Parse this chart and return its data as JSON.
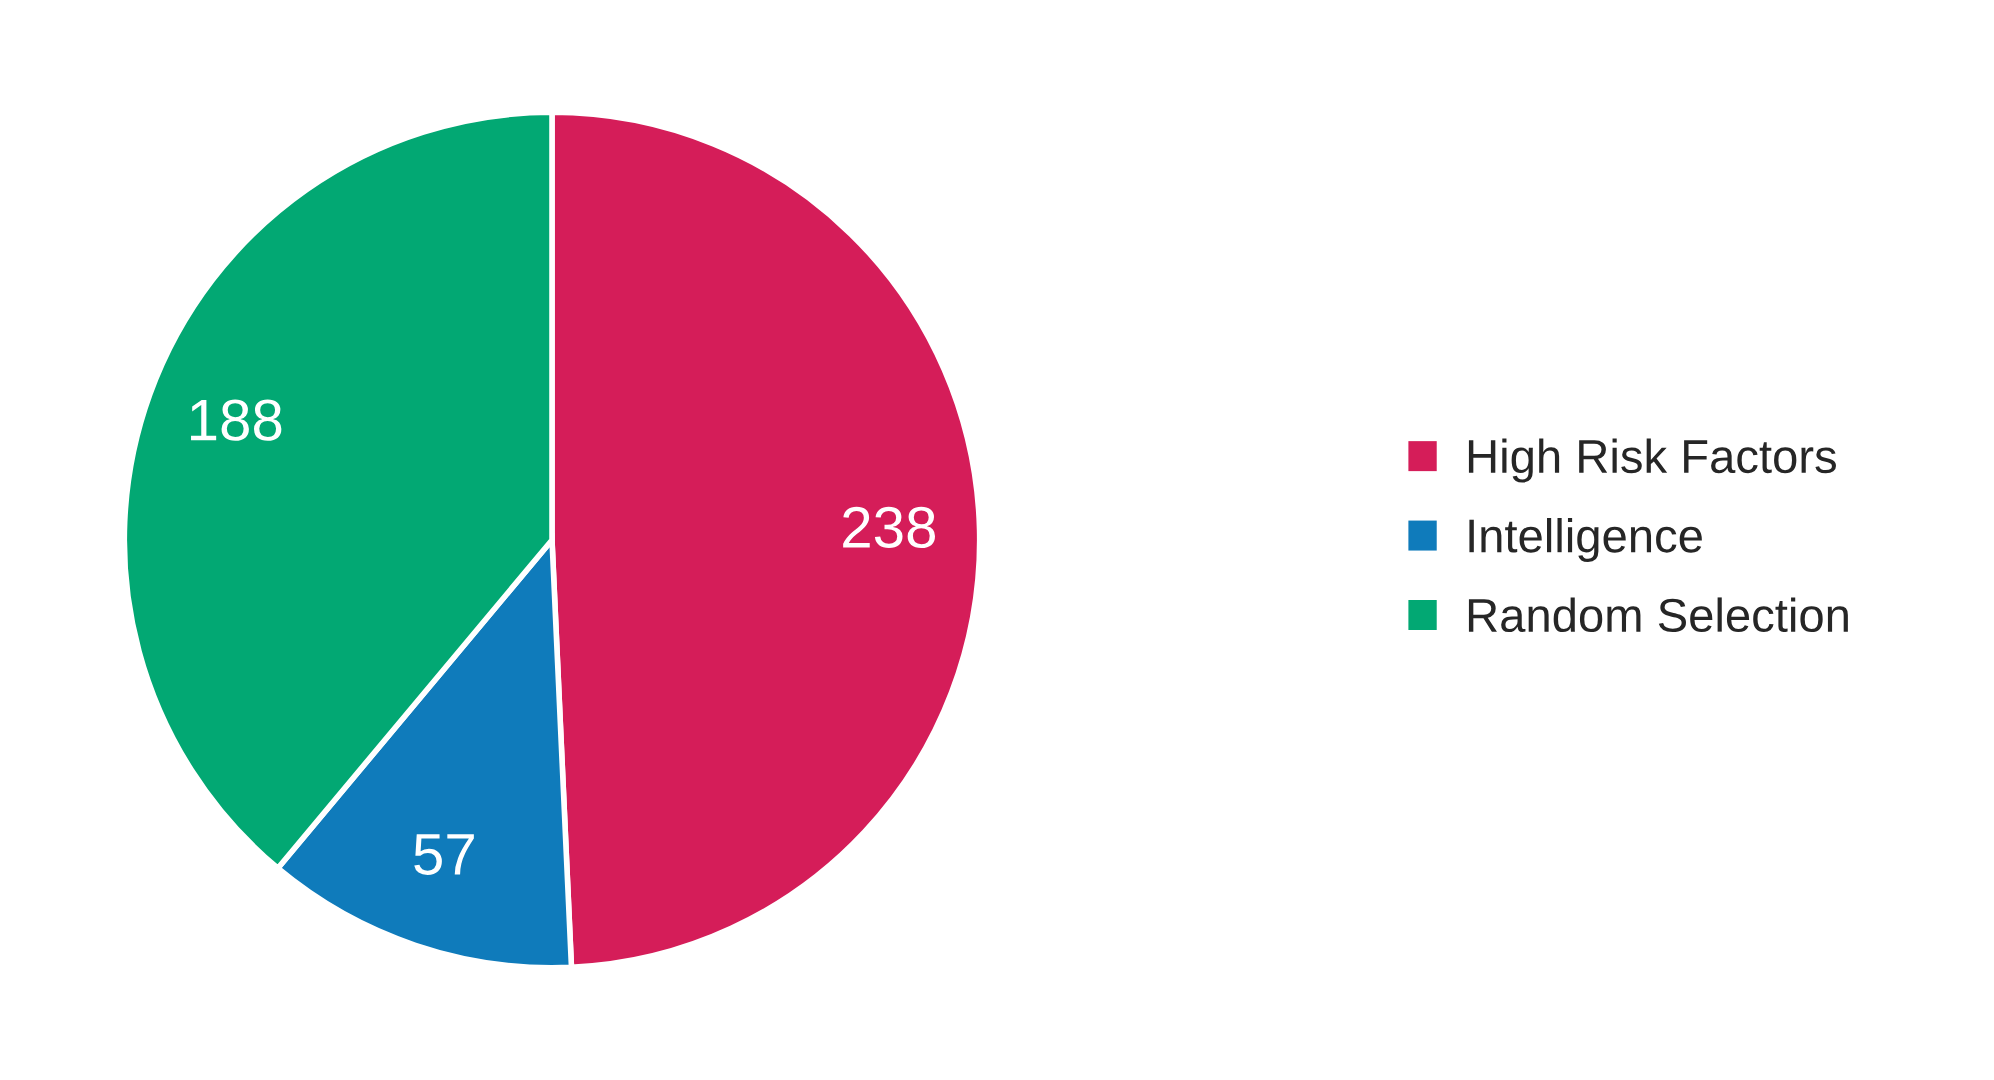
{
  "chart_data": {
    "type": "pie",
    "categories": [
      "High Risk Factors",
      "Intelligence",
      "Random Selection"
    ],
    "values": [
      238,
      57,
      188
    ],
    "colors": [
      "#d51d59",
      "#0f7bbb",
      "#02a873"
    ],
    "data_labels": true,
    "legend": "right"
  }
}
